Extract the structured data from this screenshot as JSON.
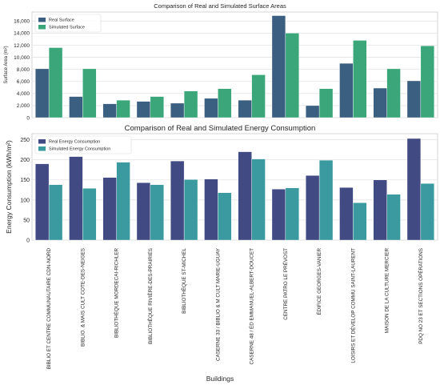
{
  "chart_data": [
    {
      "type": "bar",
      "title": "Comparison of Real and Simulated Surface Areas",
      "xlabel": "",
      "ylabel": "Surface Area (m²)",
      "ylim": [
        0,
        17500
      ],
      "yticks": [
        0,
        2000,
        4000,
        6000,
        8000,
        10000,
        12000,
        14000,
        16000
      ],
      "ytick_labels": [
        "0",
        "2,000",
        "4,000",
        "6,000",
        "8,000",
        "10,000",
        "12,000",
        "14,000",
        "16,000"
      ],
      "grid": true,
      "legend_position": "top-left",
      "series": [
        {
          "name": "Real Surface",
          "color": "#3a5f80",
          "values": [
            8100,
            3500,
            2300,
            2700,
            2400,
            3200,
            2900,
            16900,
            2000,
            9000,
            4900,
            6100
          ]
        },
        {
          "name": "Simulated Surface",
          "color": "#3aa67a",
          "values": [
            11600,
            8100,
            2900,
            3500,
            4400,
            4800,
            7100,
            14000,
            4800,
            12800,
            8100,
            11900
          ]
        }
      ]
    },
    {
      "type": "bar",
      "title": "Comparison of Real and Simulated Energy Consumption",
      "xlabel": "Buildings",
      "ylabel": "Energy Consumption (kWh/m²)",
      "ylim": [
        0,
        265
      ],
      "yticks": [
        0,
        50,
        100,
        150,
        200,
        250
      ],
      "ytick_labels": [
        "0",
        "50",
        "100",
        "150",
        "200",
        "250"
      ],
      "grid": true,
      "legend_position": "top-left",
      "categories": [
        "BIBLIO ET CENTRE COMMUNAUTAIRE CDN-NORD",
        "BIBLIO. & MAIS CULT COTE-DES-NEIGES",
        "BIBLIOTHÈQUE MORDECAI-RICHLER",
        "BIBLIOTHÈQUE RIVIÈRE-DES-PRAIRIES",
        "BIBLIOTHÈQUE ST-MICHEL",
        "CASERNE 33 / BIBLIO & M CULT MARIE-UGUAY",
        "CASERNE 48 / ÉD EMMANUEL-ALBERT-DOUCET",
        "CENTRE PATRO LE PRÉVOST",
        "ÉDIFICE GEORGES-VANIER",
        "LOISIRS ET DÉVELOP COMMU SAINT-LAURENT",
        "MAISON DE LA CULTURE MERCIER",
        "PDQ NO 23 ET SECTIONS OPÉRATIONS"
      ],
      "series": [
        {
          "name": "Real Energy Consumption",
          "color": "#424a84",
          "values": [
            190,
            208,
            156,
            143,
            197,
            152,
            220,
            127,
            161,
            131,
            150,
            253
          ]
        },
        {
          "name": "Simulated Energy Consumption",
          "color": "#3b9aa0",
          "values": [
            138,
            129,
            194,
            138,
            151,
            118,
            202,
            130,
            199,
            93,
            114,
            141
          ]
        }
      ]
    }
  ]
}
